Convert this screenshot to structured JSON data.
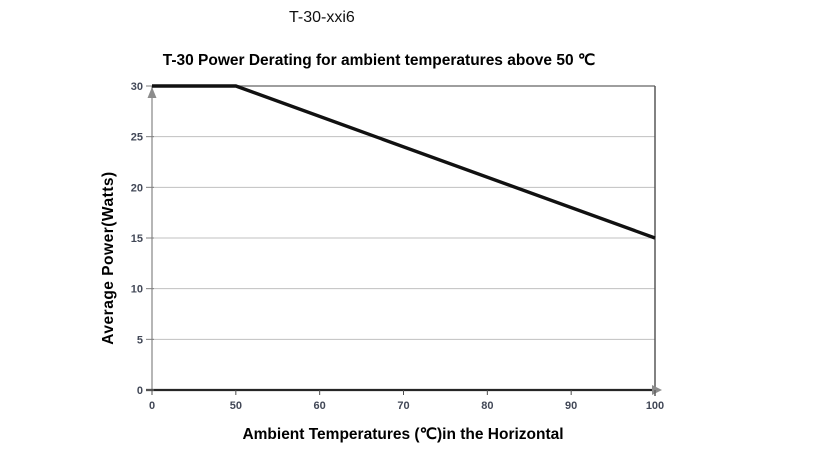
{
  "page": {
    "header_label": "T-30-xxi6"
  },
  "chart_data": {
    "type": "line",
    "title": "T-30 Power Derating for ambient temperatures above 50 ℃",
    "xlabel": "Ambient Temperatures (℃)in the Horizontal",
    "ylabel": "Average Power(Watts)",
    "x_tick_labels": [
      "0",
      "50",
      "60",
      "70",
      "80",
      "90",
      "100"
    ],
    "x_scale": "categorical-even-spacing",
    "y_ticks": [
      0,
      5,
      10,
      15,
      20,
      25,
      30
    ],
    "ylim": [
      0,
      30
    ],
    "grid": "horizontal gridlines at each y tick",
    "legend": "none",
    "axis_arrowheads": [
      "y-axis-top",
      "x-axis-right"
    ],
    "series": [
      {
        "points": [
          {
            "x": "0",
            "y": 30
          },
          {
            "x": "50",
            "y": 30
          },
          {
            "x": "100",
            "y": 15
          }
        ]
      }
    ],
    "colors": {
      "series_line": "#111111",
      "gridline": "#c0c0c0",
      "plot_border_top": "#7f7f7f",
      "plot_border_right": "#4d4d4d",
      "x_axis_line": "#262626",
      "y_axis_line": "#a3a3a3",
      "tick_mark": "#7f7f7f",
      "arrowhead": "#8c8c8c",
      "tick_label": "#424857",
      "background": "#ffffff"
    }
  }
}
